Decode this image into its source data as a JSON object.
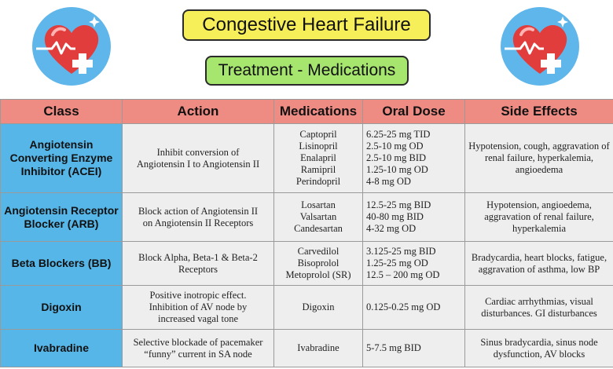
{
  "header": {
    "title": "Congestive Heart Failure",
    "subtitle": "Treatment - Medications"
  },
  "icons": {
    "left": "heart-medical-cross-icon",
    "right": "heart-medical-cross-icon"
  },
  "colors": {
    "title_bg": "#f7ef5a",
    "subtitle_bg": "#a6e56e",
    "header_row_bg": "#ee8c84",
    "class_col_bg": "#56b6e8",
    "cell_bg": "#eeeeee",
    "badge_bg": "#5fb6ea",
    "heart": "#e23d3d"
  },
  "table": {
    "columns": [
      "Class",
      "Action",
      "Medications",
      "Oral Dose",
      "Side Effects"
    ],
    "rows": [
      {
        "class": "Angiotensin\nConverting Enzyme\nInhibitor (ACEI)",
        "action": "Inhibit conversion of\nAngiotensin I to Angiotensin II",
        "medications": "Captopril\nLisinopril\nEnalapril\nRamipril\nPerindopril",
        "dose": "6.25-25 mg TID\n2.5-10 mg OD\n2.5-10 mg BID\n1.25-10 mg OD\n4-8 mg OD",
        "side_effects": "Hypotension, cough, aggravation of\nrenal failure, hyperkalemia,\nangioedema"
      },
      {
        "class": "Angiotensin Receptor\nBlocker (ARB)",
        "action": "Block action of Angiotensin II\non Angiotensin II Receptors",
        "medications": "Losartan\nValsartan\nCandesartan",
        "dose": "12.5-25 mg  BID\n40-80 mg BID\n4-32 mg OD",
        "side_effects": "Hypotension, angioedema,\naggravation of renal failure,\nhyperkalemia"
      },
      {
        "class": "Beta Blockers (BB)",
        "action": "Block Alpha, Beta-1 & Beta-2\nReceptors",
        "medications": "Carvedilol\nBisoprolol\nMetoprolol (SR)",
        "dose": "3.125-25 mg  BID\n1.25-25 mg  OD\n12.5 – 200 mg  OD",
        "side_effects": "Bradycardia, heart blocks, fatigue,\naggravation of asthma, low BP"
      },
      {
        "class": "Digoxin",
        "action": "Positive inotropic effect.\nInhibition of AV node by\nincreased vagal tone",
        "medications": "Digoxin",
        "dose": "0.125-0.25 mg OD",
        "side_effects": "Cardiac arrhythmias, visual\ndisturbances. GI disturbances"
      },
      {
        "class": "Ivabradine",
        "action": "Selective blockade of pacemaker\n“funny” current in SA node",
        "medications": "Ivabradine",
        "dose": "5-7.5 mg BID",
        "side_effects": "Sinus bradycardia, sinus node\ndysfunction, AV blocks"
      }
    ]
  }
}
